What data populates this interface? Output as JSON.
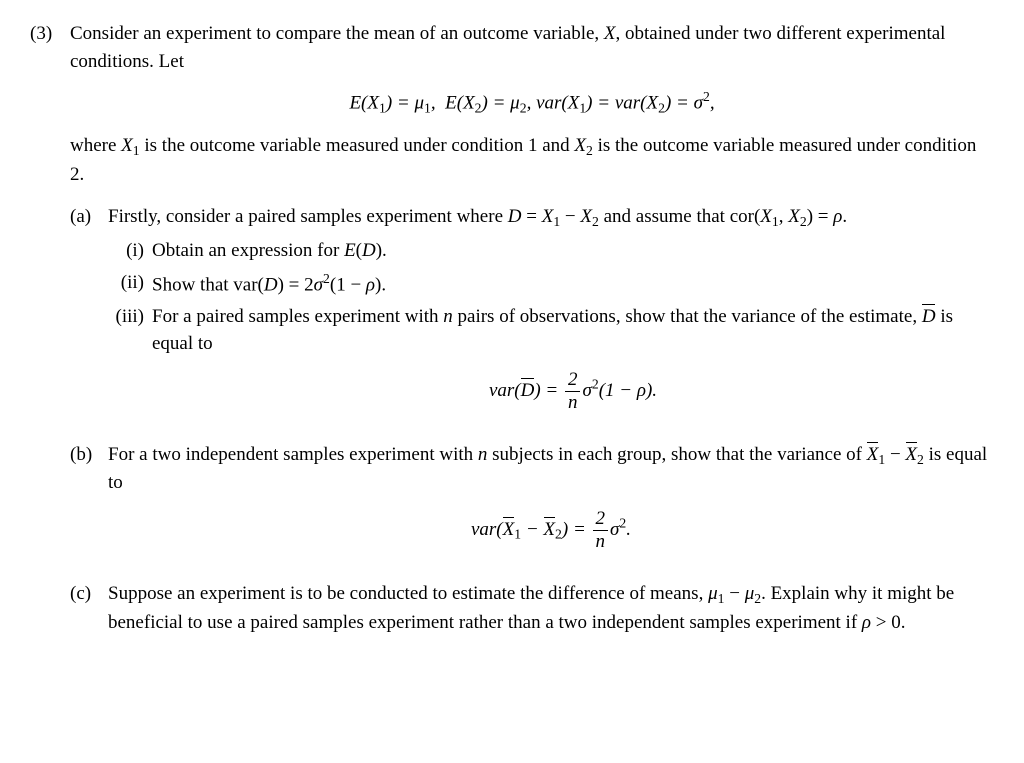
{
  "problem_number": "(3)",
  "intro_line1": "Consider an experiment to compare the mean of an outcome variable, ",
  "intro_var": "X",
  "intro_line1b": ", obtained under two different experimental conditions. Let",
  "cond_text1": "where ",
  "cond_text2": " is the outcome variable measured under condition 1 and ",
  "cond_text3": " is the outcome variable measured under condition 2.",
  "a": {
    "label": "(a)",
    "text1": "Firstly, consider a paired samples experiment where ",
    "text2": " and assume that cor(",
    "text3": ") = ",
    "rho": "ρ",
    "period": ".",
    "i_label": "(i)",
    "i_text": "Obtain an expression for ",
    "ii_label": "(ii)",
    "ii_text": "Show that var(",
    "ii_text2": ") = 2",
    "ii_text3": "(1 − ",
    "ii_text4": ").",
    "iii_label": "(iii)",
    "iii_text1": "For a paired samples experiment with ",
    "iii_n": "n",
    "iii_text2": " pairs of observations, show that the variance of the estimate, ",
    "iii_text3": " is equal to"
  },
  "b": {
    "label": "(b)",
    "text1": "For a two independent samples experiment with ",
    "n": "n",
    "text2": " subjects in each group, show that the variance of ",
    "text3": " is equal to"
  },
  "c": {
    "label": "(c)",
    "text1": "Suppose an experiment is to be conducted to estimate the difference of means, ",
    "text2": ". Explain why it might be beneficial to use a paired samples experiment rather than a two independent samples experiment if ",
    "rho": "ρ",
    "text3": " > 0."
  }
}
